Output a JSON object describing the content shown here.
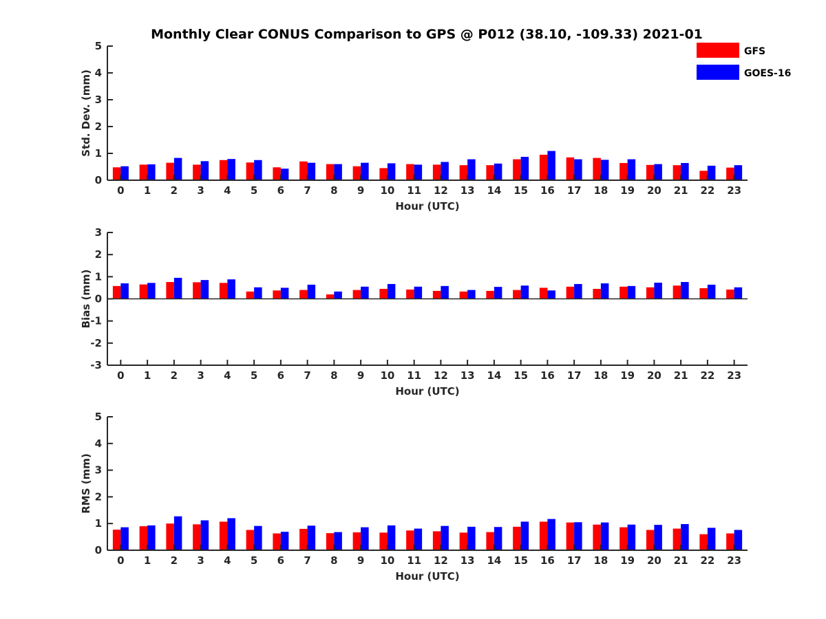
{
  "chart_data": {
    "type": "bar",
    "title": "Monthly Clear CONUS Comparison to GPS @ P012 (38.10, -109.33) 2021-01",
    "categories": [
      "0",
      "1",
      "2",
      "3",
      "4",
      "5",
      "6",
      "7",
      "8",
      "9",
      "10",
      "11",
      "12",
      "13",
      "14",
      "15",
      "16",
      "17",
      "18",
      "19",
      "20",
      "21",
      "22",
      "23"
    ],
    "legend": {
      "placement": "top-right",
      "entries": [
        {
          "name": "GFS",
          "color": "#ff0000"
        },
        {
          "name": "GOES-16",
          "color": "#0000ff"
        }
      ]
    },
    "panels": [
      {
        "id": "std",
        "ylabel": "Std. Dev. (mm)",
        "xlabel": "Hour (UTC)",
        "ylim": [
          0,
          5
        ],
        "yticks": [
          "0",
          "1",
          "2",
          "3",
          "4",
          "5"
        ],
        "series": [
          {
            "name": "GFS",
            "color": "#ff0000",
            "values": [
              0.48,
              0.58,
              0.65,
              0.58,
              0.75,
              0.66,
              0.48,
              0.7,
              0.6,
              0.52,
              0.45,
              0.6,
              0.58,
              0.56,
              0.56,
              0.78,
              0.95,
              0.85,
              0.83,
              0.64,
              0.57,
              0.56,
              0.35,
              0.47
            ]
          },
          {
            "name": "GOES-16",
            "color": "#0000ff",
            "values": [
              0.52,
              0.59,
              0.83,
              0.71,
              0.79,
              0.75,
              0.43,
              0.65,
              0.6,
              0.65,
              0.63,
              0.58,
              0.68,
              0.78,
              0.62,
              0.87,
              1.09,
              0.78,
              0.76,
              0.78,
              0.6,
              0.64,
              0.54,
              0.56
            ]
          }
        ]
      },
      {
        "id": "bias",
        "ylabel": "Bias (mm)",
        "xlabel": "Hour (UTC)",
        "ylim": [
          -3,
          3
        ],
        "yticks": [
          "-3",
          "-2",
          "-1",
          "0",
          "1",
          "2",
          "3"
        ],
        "series": [
          {
            "name": "GFS",
            "color": "#ff0000",
            "values": [
              0.58,
              0.65,
              0.76,
              0.75,
              0.72,
              0.33,
              0.38,
              0.4,
              0.2,
              0.4,
              0.45,
              0.42,
              0.36,
              0.33,
              0.36,
              0.4,
              0.5,
              0.55,
              0.45,
              0.55,
              0.52,
              0.6,
              0.48,
              0.42
            ]
          },
          {
            "name": "GOES-16",
            "color": "#0000ff",
            "values": [
              0.7,
              0.72,
              0.95,
              0.85,
              0.88,
              0.52,
              0.5,
              0.64,
              0.33,
              0.55,
              0.67,
              0.55,
              0.58,
              0.4,
              0.54,
              0.6,
              0.38,
              0.67,
              0.7,
              0.58,
              0.73,
              0.76,
              0.64,
              0.52
            ]
          }
        ]
      },
      {
        "id": "rms",
        "ylabel": "RMS (mm)",
        "xlabel": "Hour (UTC)",
        "ylim": [
          0,
          5
        ],
        "yticks": [
          "0",
          "1",
          "2",
          "3",
          "4",
          "5"
        ],
        "series": [
          {
            "name": "GFS",
            "color": "#ff0000",
            "values": [
              0.77,
              0.9,
              1.0,
              0.97,
              1.07,
              0.76,
              0.63,
              0.8,
              0.64,
              0.67,
              0.66,
              0.74,
              0.71,
              0.66,
              0.68,
              0.88,
              1.07,
              1.04,
              0.96,
              0.86,
              0.76,
              0.81,
              0.6,
              0.63
            ]
          },
          {
            "name": "GOES-16",
            "color": "#0000ff",
            "values": [
              0.86,
              0.93,
              1.27,
              1.12,
              1.2,
              0.91,
              0.69,
              0.92,
              0.68,
              0.86,
              0.93,
              0.81,
              0.91,
              0.88,
              0.87,
              1.07,
              1.17,
              1.05,
              1.04,
              0.96,
              0.95,
              0.98,
              0.84,
              0.76
            ]
          }
        ]
      }
    ]
  }
}
